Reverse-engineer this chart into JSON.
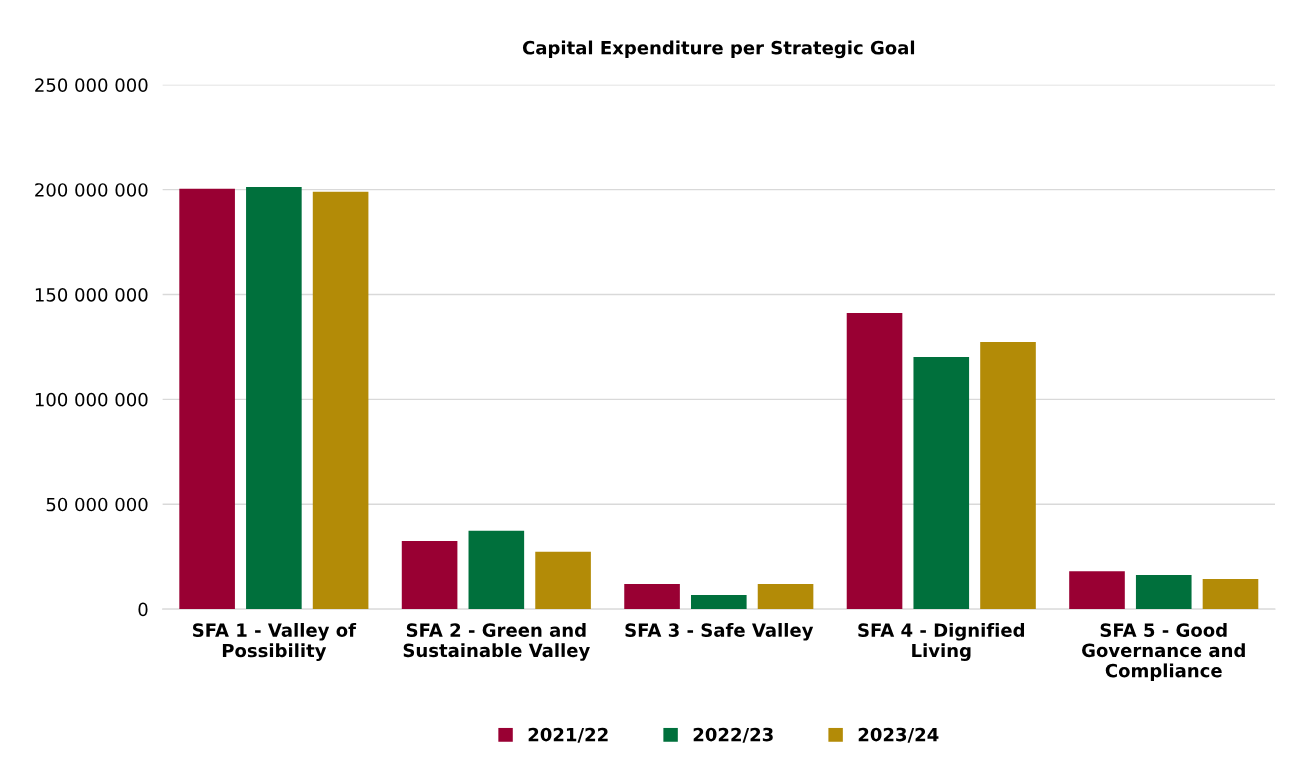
{
  "chart_data": {
    "type": "bar",
    "title": "Capital Expenditure per Strategic Goal",
    "categories": [
      "SFA 1 - Valley of\nPossibility",
      "SFA 2 - Green and\nSustainable Valley",
      "SFA 3 - Safe Valley",
      "SFA 4 - Dignified\nLiving",
      "SFA 5 - Good\nGovernance and\nCompliance"
    ],
    "series": [
      {
        "name": "2021/22",
        "color": "#990033",
        "values": [
          200400000,
          32500000,
          12000000,
          141200000,
          18100000
        ]
      },
      {
        "name": "2022/23",
        "color": "#00703c",
        "values": [
          201300000,
          37300000,
          6700000,
          120200000,
          16300000
        ]
      },
      {
        "name": "2023/24",
        "color": "#b38b07",
        "values": [
          199000000,
          27300000,
          12000000,
          127400000,
          14300000
        ]
      }
    ],
    "ylim": [
      0,
      250000000
    ],
    "yticks": [
      {
        "value": 0,
        "label": "0"
      },
      {
        "value": 50000000,
        "label": "50 000 000"
      },
      {
        "value": 100000000,
        "label": "100 000 000"
      },
      {
        "value": 150000000,
        "label": "150 000 000"
      },
      {
        "value": 200000000,
        "label": "200 000 000"
      },
      {
        "value": 250000000,
        "label": "250 000 000"
      }
    ],
    "grid": "y",
    "legend": "bottom"
  }
}
